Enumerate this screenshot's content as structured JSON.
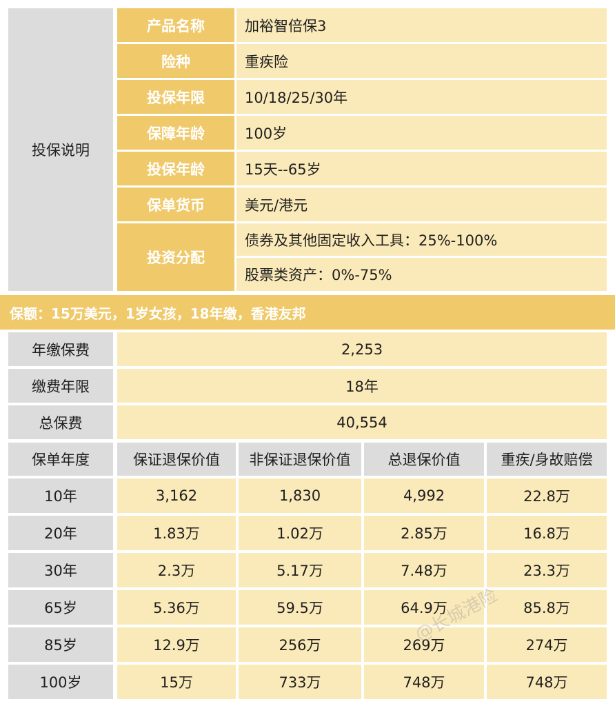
{
  "section_label": "投保说明",
  "info_rows": [
    {
      "label": "产品名称",
      "value": "加裕智倍保3"
    },
    {
      "label": "险种",
      "value": "重疾险"
    },
    {
      "label": "投保年限",
      "value": "10/18/25/30年"
    },
    {
      "label": "保障年龄",
      "value": "100岁"
    },
    {
      "label": "投保年龄",
      "value": "15天--65岁"
    },
    {
      "label": "保单货币",
      "value": "美元/港元"
    }
  ],
  "allocation": {
    "label": "投资分配",
    "lines": [
      "债券及其他固定收入工具：25%-100%",
      "股票类资产：0%-75%"
    ]
  },
  "banner": "保额：15万美元，1岁女孩，18年缴，香港友邦",
  "premium_rows": [
    {
      "label": "年缴保费",
      "value": "2,253"
    },
    {
      "label": "缴费年限",
      "value": "18年"
    },
    {
      "label": "总保费",
      "value": "40,554"
    }
  ],
  "table": {
    "headers": [
      "保单年度",
      "保证退保价值",
      "非保证退保价值",
      "总退保价值",
      "重疾/身故赔偿"
    ],
    "rows": [
      [
        "10年",
        "3,162",
        "1,830",
        "4,992",
        "22.8万"
      ],
      [
        "20年",
        "1.83万",
        "1.02万",
        "2.85万",
        "16.8万"
      ],
      [
        "30年",
        "2.3万",
        "5.17万",
        "7.48万",
        "23.3万"
      ],
      [
        "65岁",
        "5.36万",
        "59.5万",
        "64.9万",
        "85.8万"
      ],
      [
        "85岁",
        "12.9万",
        "256万",
        "269万",
        "274万"
      ],
      [
        "100岁",
        "15万",
        "733万",
        "748万",
        "748万"
      ]
    ]
  },
  "watermark": "@长城港险",
  "colors": {
    "gold": "#efc96a",
    "cream": "#fbeab9",
    "grey": "#dcdcdc"
  }
}
